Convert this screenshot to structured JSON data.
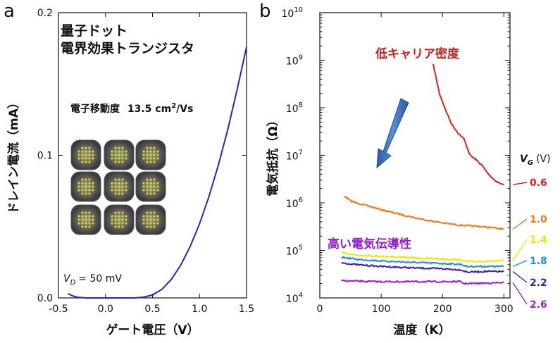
{
  "figure": {
    "panel_a": "a",
    "panel_b": "b"
  },
  "chart_data": [
    {
      "type": "line",
      "panel": "a",
      "xlabel": "ゲート電圧（V）",
      "ylabel": "ドレイン電流（mA）",
      "xlim": [
        -0.5,
        1.5
      ],
      "ylim": [
        0.0,
        0.2
      ],
      "xticks": [
        "-0.5",
        "0.0",
        "0.5",
        "1.0",
        "1.5"
      ],
      "yticks": [
        "0.0",
        "0.1",
        "0.2"
      ],
      "grid": false,
      "annotation_title_line1": "量子ドット",
      "annotation_title_line2": "電界効果トランジスタ",
      "mobility_label": "電子移動度",
      "mobility_value": "13.5 cm",
      "mobility_sup": "2",
      "mobility_unit": "/Vs",
      "vd_symbol": "V",
      "vd_sub": "D",
      "vd_value": "= 50 mV",
      "series": [
        {
          "color": "#1f2bb8",
          "x": [
            -0.4,
            -0.35,
            -0.3,
            -0.2,
            -0.1,
            0.0,
            0.1,
            0.2,
            0.3,
            0.4,
            0.5,
            0.6,
            0.7,
            0.8,
            0.9,
            1.0,
            1.1,
            1.2,
            1.3,
            1.4,
            1.5
          ],
          "y": [
            0.003,
            0.0015,
            0.0005,
            0.0,
            0.0,
            0.0,
            0.0,
            0.0,
            0.0,
            0.0005,
            0.002,
            0.006,
            0.013,
            0.023,
            0.036,
            0.052,
            0.071,
            0.093,
            0.118,
            0.146,
            0.176
          ]
        }
      ]
    },
    {
      "type": "line",
      "panel": "b",
      "xlabel": "温度（K）",
      "ylabel": "電気抵抗（Ω）",
      "xlim": [
        0,
        310
      ],
      "ylim_log10": [
        4,
        10
      ],
      "yscale": "log",
      "xticks": [
        0,
        100,
        200,
        300
      ],
      "yticks_exp": [
        4,
        5,
        6,
        7,
        8,
        9,
        10
      ],
      "ytick_base": "10",
      "grid": false,
      "annotation_low": "低キャリア密度",
      "annotation_high": "高い電気伝導性",
      "legend_symbol": "V",
      "legend_sub": "G",
      "legend_unit": "(V)",
      "series": [
        {
          "name": "0.6",
          "color": "#e0201a",
          "x": [
            185,
            195,
            205,
            215,
            225,
            235,
            245,
            255,
            265,
            275,
            285,
            295,
            300
          ],
          "y": [
            800000000,
            200000000,
            90000000,
            45000000,
            30000000,
            22000000,
            10000000,
            8000000,
            6000000,
            4000000,
            3000000,
            2500000,
            2400000
          ]
        },
        {
          "name": "1.0",
          "color": "#f07820",
          "x": [
            40,
            50,
            60,
            80,
            100,
            120,
            140,
            160,
            180,
            200,
            220,
            240,
            260,
            280,
            300
          ],
          "y": [
            1400000,
            1100000,
            1000000,
            850000,
            720000,
            620000,
            540000,
            470000,
            420000,
            380000,
            350000,
            330000,
            320000,
            300000,
            280000
          ]
        },
        {
          "name": "1.4",
          "color": "#f2e600",
          "x": [
            35,
            60,
            100,
            150,
            200,
            230,
            240,
            270,
            300
          ],
          "y": [
            90000,
            80000,
            75000,
            70000,
            66000,
            63000,
            58000,
            59000,
            60000
          ]
        },
        {
          "name": "1.8",
          "color": "#1f8ee8",
          "x": [
            35,
            60,
            100,
            150,
            200,
            230,
            240,
            270,
            300
          ],
          "y": [
            72000,
            65000,
            60000,
            56000,
            53000,
            51000,
            46000,
            46000,
            46000
          ]
        },
        {
          "name": "2.2",
          "color": "#3b23b0",
          "x": [
            35,
            60,
            100,
            150,
            200,
            230,
            240,
            270,
            300
          ],
          "y": [
            55000,
            50000,
            46000,
            43000,
            41000,
            39000,
            35000,
            36000,
            36000
          ]
        },
        {
          "name": "2.6",
          "color": "#9d1fd6",
          "x": [
            35,
            60,
            100,
            150,
            200,
            230,
            235,
            270,
            300
          ],
          "y": [
            23000,
            22500,
            22000,
            22000,
            22000,
            22000,
            20000,
            20500,
            21000
          ]
        }
      ]
    }
  ]
}
